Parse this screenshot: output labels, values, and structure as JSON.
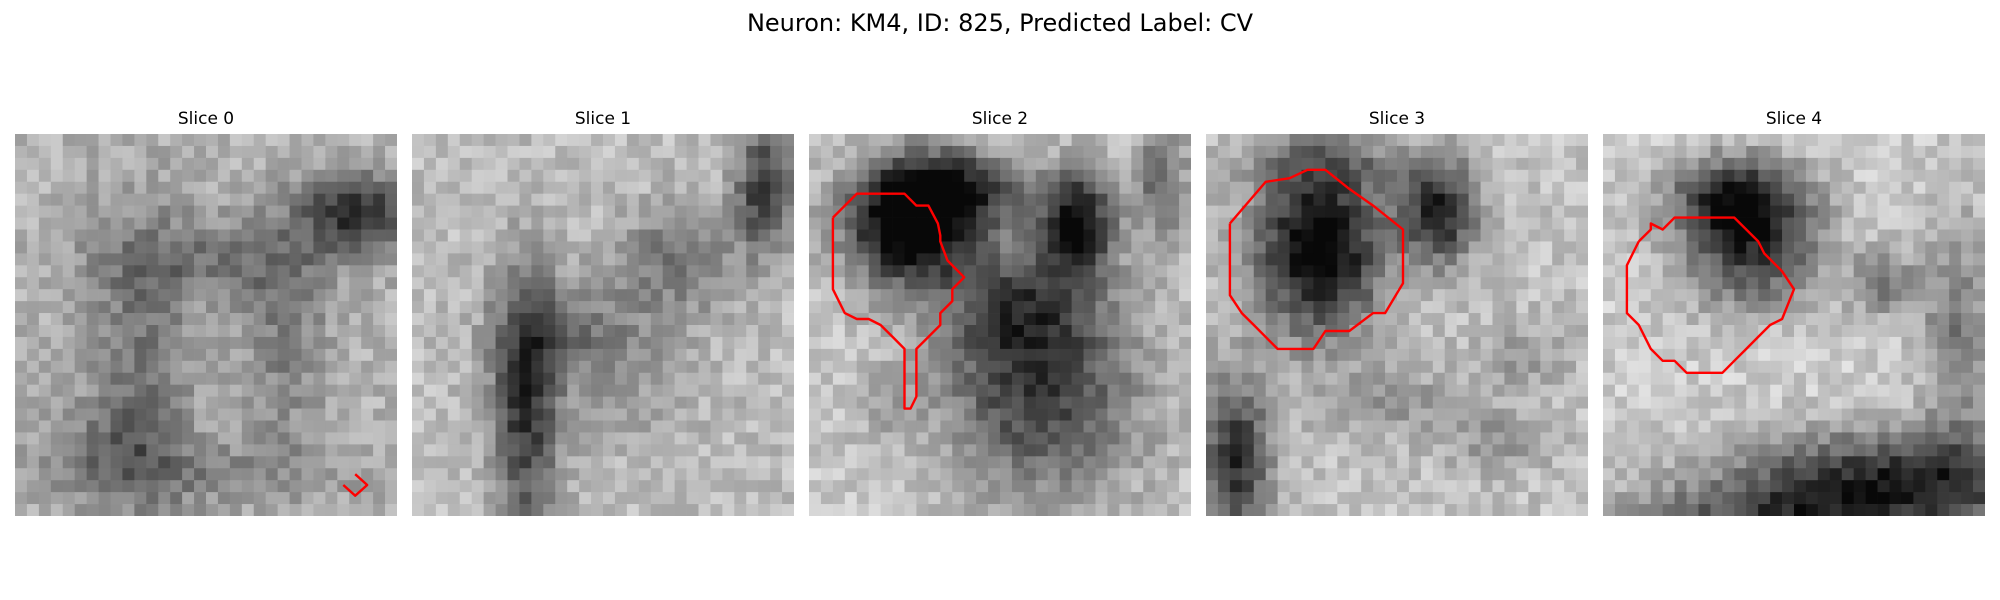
{
  "figure": {
    "title": "Neuron: KM4, ID: 825, Predicted Label: CV"
  },
  "panels": [
    {
      "title": "Slice 0"
    },
    {
      "title": "Slice 1"
    },
    {
      "title": "Slice 2"
    },
    {
      "title": "Slice 3"
    },
    {
      "title": "Slice 4"
    }
  ],
  "colors": {
    "contour": "#ff0000",
    "background": "#ffffff"
  }
}
